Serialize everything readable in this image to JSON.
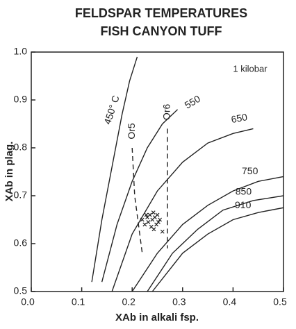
{
  "chart_data": {
    "type": "line",
    "title": "FELDSPAR TEMPERATURES",
    "subtitle": "FISH CANYON TUFF",
    "annotation": "1 kilobar",
    "xlabel": "XAb in alkali fsp.",
    "ylabel": "XAb in plag.",
    "xlim": [
      0,
      0.5
    ],
    "ylim": [
      0.5,
      1.0
    ],
    "xticks": [
      {
        "value": 0,
        "label": "0.0"
      },
      0.1,
      0.2,
      0.3,
      0.4,
      0.5
    ],
    "yticks": [
      0.5,
      0.6,
      0.7,
      0.8,
      0.9,
      {
        "value": 1,
        "label": "1.0"
      }
    ],
    "series": [
      {
        "name": "450° C",
        "color": "#222",
        "x": [
          0.12,
          0.14,
          0.16,
          0.18,
          0.195,
          0.21
        ],
        "values": [
          0.52,
          0.65,
          0.76,
          0.87,
          0.94,
          0.99
        ]
      },
      {
        "name": "550",
        "color": "#222",
        "x": [
          0.14,
          0.17,
          0.2,
          0.23,
          0.26,
          0.29
        ],
        "values": [
          0.52,
          0.64,
          0.73,
          0.8,
          0.85,
          0.88
        ]
      },
      {
        "name": "650",
        "color": "#222",
        "x": [
          0.16,
          0.2,
          0.25,
          0.3,
          0.35,
          0.4,
          0.44
        ],
        "values": [
          0.5,
          0.62,
          0.71,
          0.77,
          0.81,
          0.83,
          0.84
        ]
      },
      {
        "name": "750",
        "color": "#222",
        "x": [
          0.2,
          0.25,
          0.3,
          0.35,
          0.4,
          0.45,
          0.5
        ],
        "values": [
          0.5,
          0.58,
          0.64,
          0.68,
          0.71,
          0.73,
          0.74
        ]
      },
      {
        "name": "850",
        "color": "#222",
        "x": [
          0.23,
          0.28,
          0.33,
          0.38,
          0.44,
          0.5
        ],
        "values": [
          0.5,
          0.58,
          0.63,
          0.67,
          0.69,
          0.7
        ]
      },
      {
        "name": "910",
        "color": "#222",
        "x": [
          0.24,
          0.3,
          0.35,
          0.4,
          0.45,
          0.5
        ],
        "values": [
          0.5,
          0.58,
          0.62,
          0.65,
          0.665,
          0.675
        ]
      },
      {
        "name": "Or5",
        "color": "#222",
        "dash": true,
        "x": [
          0.2,
          0.205,
          0.22
        ],
        "values": [
          0.8,
          0.7,
          0.58
        ]
      },
      {
        "name": "Or6",
        "color": "#222",
        "dash": true,
        "x": [
          0.27,
          0.27
        ],
        "values": [
          0.84,
          0.59
        ]
      },
      {
        "type": "scatter",
        "color": "#222",
        "x": [
          0.22,
          0.225,
          0.23,
          0.232,
          0.235,
          0.238,
          0.24,
          0.242,
          0.245,
          0.248,
          0.25,
          0.252,
          0.255,
          0.228,
          0.243,
          0.26
        ],
        "values": [
          0.65,
          0.64,
          0.655,
          0.645,
          0.66,
          0.635,
          0.65,
          0.665,
          0.655,
          0.64,
          0.66,
          0.645,
          0.65,
          0.66,
          0.63,
          0.625
        ]
      }
    ]
  }
}
